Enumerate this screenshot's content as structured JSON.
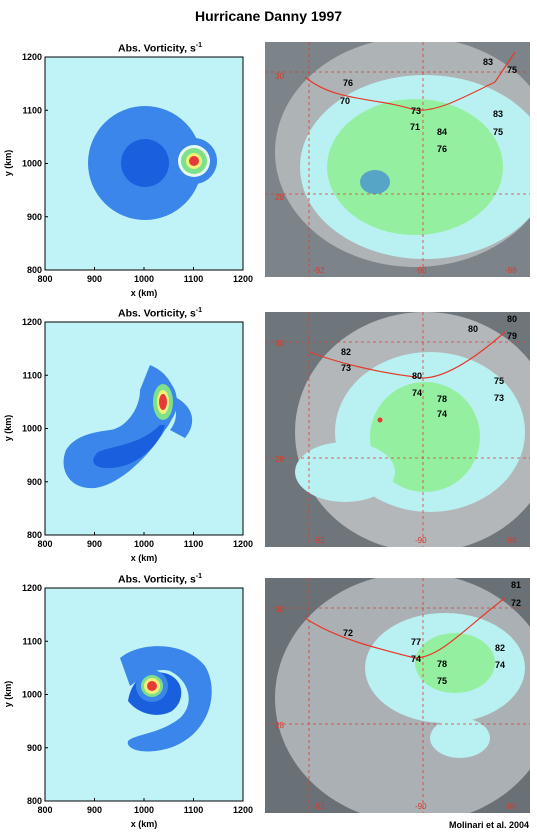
{
  "figure": {
    "title": "Hurricane Danny 1997",
    "credit": "Molinari et al. 2004"
  },
  "panels": [
    {
      "title": "Abs. Vorticity, s",
      "title_exp": "-1",
      "xlabel": "x (km)",
      "ylabel": "y (km)",
      "xticks": [
        "800",
        "900",
        "1000",
        "1100",
        "1200"
      ],
      "yticks": [
        "800",
        "900",
        "1000",
        "1100",
        "1200"
      ],
      "satellite": {
        "lat_labels": [
          "30",
          "28"
        ],
        "lon_labels": [
          "-92",
          "-90",
          "-88"
        ],
        "station_labels": [
          "83",
          "75",
          "76",
          "70",
          "73",
          "71",
          "84",
          "76",
          "83",
          "75"
        ]
      }
    },
    {
      "title": "Abs. Vorticity, s",
      "title_exp": "-1",
      "xlabel": "x (km)",
      "ylabel": "y (km)",
      "xticks": [
        "800",
        "900",
        "1000",
        "1100",
        "1200"
      ],
      "yticks": [
        "800",
        "900",
        "1000",
        "1100",
        "1200"
      ],
      "satellite": {
        "lat_labels": [
          "30",
          "28"
        ],
        "lon_labels": [
          "-92",
          "-90",
          "-88"
        ],
        "station_labels": [
          "80",
          "80",
          "79",
          "82",
          "73",
          "80",
          "74",
          "78",
          "75",
          "73",
          "74"
        ]
      }
    },
    {
      "title": "Abs. Vorticity, s",
      "title_exp": "-1",
      "xlabel": "x (km)",
      "ylabel": "y (km)",
      "xticks": [
        "800",
        "900",
        "1000",
        "1100",
        "1200"
      ],
      "yticks": [
        "800",
        "900",
        "1000",
        "1100",
        "1200"
      ],
      "satellite": {
        "lat_labels": [
          "30",
          "28"
        ],
        "lon_labels": [
          "-92",
          "-90",
          "-88"
        ],
        "station_labels": [
          "81",
          "72",
          "72",
          "77",
          "82",
          "74",
          "78",
          "74",
          "75"
        ]
      }
    }
  ],
  "colors": {
    "background": "#bff3f8",
    "outer": "#3b86ea",
    "core_blue": "#1a5fdd",
    "green": "#7fe08a",
    "yellow": "#f3f07a",
    "red": "#e63a3a",
    "coast": "#e53a2a"
  }
}
